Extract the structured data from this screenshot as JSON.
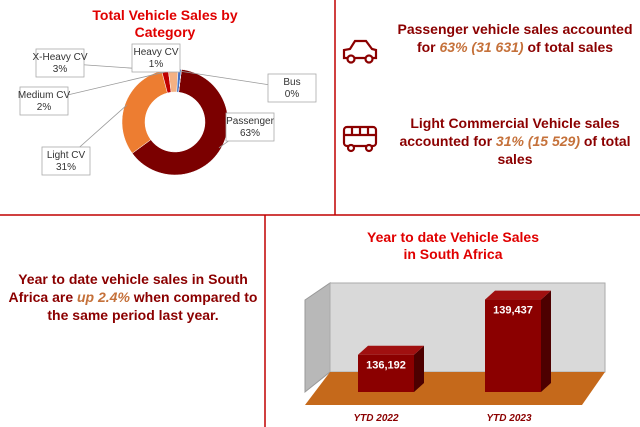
{
  "chart_data": [
    {
      "type": "donut",
      "title": "Total Vehicle Sales by Category",
      "categories": [
        "Passenger",
        "Light CV",
        "Medium CV",
        "X-Heavy CV",
        "Heavy CV",
        "Bus"
      ],
      "values": [
        63,
        31,
        2,
        3,
        1,
        0
      ],
      "value_labels": [
        "63%",
        "31%",
        "2%",
        "3%",
        "1%",
        "0%"
      ],
      "colors": [
        "#7b0000",
        "#ed7d31",
        "#c00000",
        "#f4b183",
        "#4472c4",
        "#a5a5a5"
      ]
    },
    {
      "type": "bar3d",
      "title": "Year to date Vehicle Sales in South Africa",
      "categories": [
        "YTD 2022",
        "YTD 2023"
      ],
      "values": [
        136192,
        139437
      ],
      "value_labels": [
        "136,192",
        "139,437"
      ],
      "color": "#8b0000",
      "ylim": [
        134000,
        140000
      ]
    }
  ],
  "notes": [
    {
      "before": "Passenger vehicle sales accounted for",
      "highlight": "63% (31 631)",
      "after": "of total sales"
    },
    {
      "before": "Light Commercial Vehicle sales accounted for",
      "highlight": "31% (15 529)",
      "after": "of total sales"
    },
    {
      "before": "Year to date vehicle sales in South Africa are",
      "highlight": "up 2.4%",
      "after": "when compared to the same period last year."
    }
  ]
}
